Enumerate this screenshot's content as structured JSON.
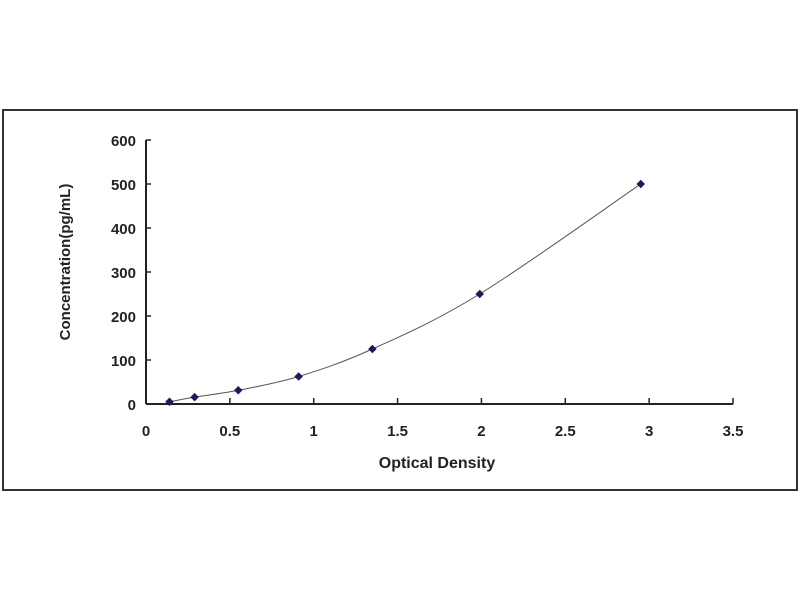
{
  "chart_data": {
    "type": "scatter",
    "title": "",
    "xlabel": "Optical Density",
    "ylabel": "Concentration(pg/mL)",
    "xlim": [
      0,
      3.5
    ],
    "ylim": [
      0,
      600
    ],
    "xticks": [
      "0",
      "0.5",
      "1",
      "1.5",
      "2",
      "2.5",
      "3",
      "3.5"
    ],
    "yticks": [
      "0",
      "100",
      "200",
      "300",
      "400",
      "500",
      "600"
    ],
    "grid": false,
    "legend": "none",
    "fit_line": true,
    "series": [
      {
        "x": [
          0.14,
          0.29,
          0.55,
          0.91,
          1.35,
          1.99,
          2.95
        ],
        "y": [
          5,
          15.6,
          31.25,
          62.5,
          125,
          250,
          500
        ]
      }
    ],
    "colors": {
      "marker": "#1a1a5e",
      "line": "#555555",
      "axis": "#222222",
      "frame": "#333333"
    }
  }
}
